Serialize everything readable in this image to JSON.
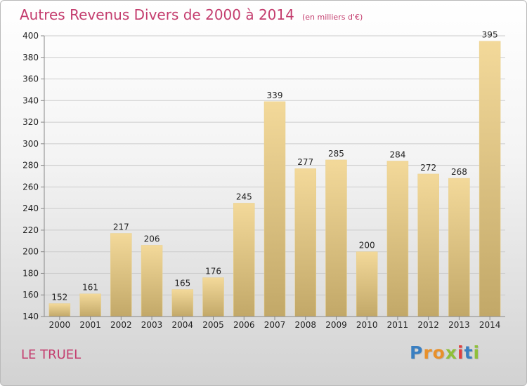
{
  "title": "Autres Revenus Divers de 2000 à 2014",
  "subtitle": "(en milliers d'€)",
  "commune": "LE TRUEL",
  "brand": {
    "name": "Proxiti",
    "letter_colors": [
      "#3a7fc1",
      "#e8902a",
      "#e8902a",
      "#8fbf3a",
      "#e04040",
      "#3a7fc1",
      "#8fbf3a"
    ]
  },
  "colors": {
    "title": "#c43d6e",
    "bar_top": "#f3d99a",
    "bar_bottom": "#c2a868",
    "grid": "#cccccc",
    "axis_text": "#222222"
  },
  "chart_data": {
    "type": "bar",
    "title": "Autres Revenus Divers de 2000 à 2014",
    "subtitle": "(en milliers d'€)",
    "categories": [
      "2000",
      "2001",
      "2002",
      "2003",
      "2004",
      "2005",
      "2006",
      "2007",
      "2008",
      "2009",
      "2010",
      "2011",
      "2012",
      "2013",
      "2014"
    ],
    "values": [
      152,
      161,
      217,
      206,
      165,
      176,
      245,
      339,
      277,
      285,
      200,
      284,
      272,
      268,
      395
    ],
    "ylim": [
      140,
      400
    ],
    "yticks": [
      140,
      160,
      180,
      200,
      220,
      240,
      260,
      280,
      300,
      320,
      340,
      360,
      380,
      400
    ],
    "grid": true,
    "data_labels": true
  }
}
